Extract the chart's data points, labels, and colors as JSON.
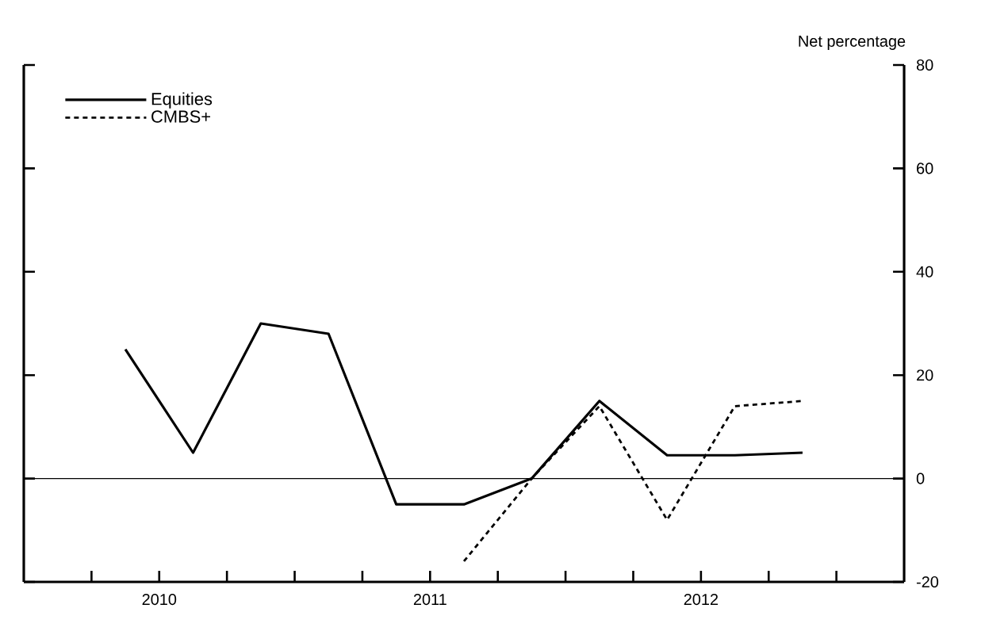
{
  "chart_data": {
    "type": "line",
    "ylabel": "Net percentage",
    "x": [
      2010.375,
      2010.625,
      2010.875,
      2011.125,
      2011.375,
      2011.625,
      2011.875,
      2012.125,
      2012.375,
      2012.625,
      2012.875
    ],
    "series": [
      {
        "name": "Equities",
        "color": "#000000",
        "line_style": "solid",
        "values": [
          25,
          5,
          30,
          28,
          -5,
          -5,
          0,
          15,
          4.5,
          4.5,
          5
        ]
      },
      {
        "name": "CMBS+",
        "color": "#000000",
        "line_style": "dashed",
        "values": [
          null,
          null,
          null,
          null,
          null,
          -16,
          0,
          14,
          -8,
          14,
          15
        ]
      }
    ],
    "xlim": [
      2010,
      2013.25
    ],
    "xticks": [
      {
        "value": 2010.25,
        "label": null
      },
      {
        "value": 2010.5,
        "label": "2010"
      },
      {
        "value": 2010.75,
        "label": null
      },
      {
        "value": 2011,
        "label": null
      },
      {
        "value": 2011.25,
        "label": null
      },
      {
        "value": 2011.5,
        "label": "2011"
      },
      {
        "value": 2011.75,
        "label": null
      },
      {
        "value": 2012,
        "label": null
      },
      {
        "value": 2012.25,
        "label": null
      },
      {
        "value": 2012.5,
        "label": "2012"
      },
      {
        "value": 2012.75,
        "label": null
      },
      {
        "value": 2013,
        "label": null
      }
    ],
    "ylim": [
      -20,
      80
    ],
    "yticks": [
      -20,
      0,
      20,
      40,
      60,
      80
    ],
    "ref_lines": [
      {
        "axis": "y",
        "value": 0
      }
    ],
    "grid": false,
    "legend": "top left"
  }
}
